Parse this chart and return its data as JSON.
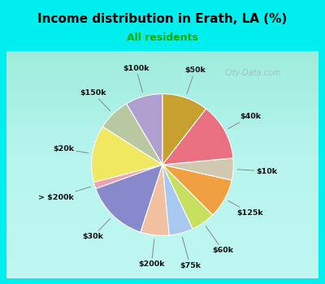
{
  "title": "Income distribution in Erath, LA (%)",
  "subtitle": "All residents",
  "title_color": "#000000",
  "subtitle_color": "#00aa00",
  "background_outer": "#00eeee",
  "background_chart": "#dff2e8",
  "labels": [
    "$100k",
    "$150k",
    "$20k",
    "> $200k",
    "$30k",
    "$200k",
    "$75k",
    "$60k",
    "$125k",
    "$10k",
    "$40k",
    "$50k"
  ],
  "sizes": [
    8.5,
    7.5,
    13.0,
    1.5,
    14.5,
    6.5,
    5.5,
    5.5,
    9.0,
    5.0,
    13.0,
    10.5
  ],
  "colors": [
    "#b0a0d0",
    "#b8c8a0",
    "#f0e860",
    "#f0a0b0",
    "#8888cc",
    "#f0c0a0",
    "#a8c8f0",
    "#c8e060",
    "#f0a040",
    "#d0c8b0",
    "#e87080",
    "#c8a030"
  ],
  "startangle": 90,
  "watermark": "City-Data.com"
}
